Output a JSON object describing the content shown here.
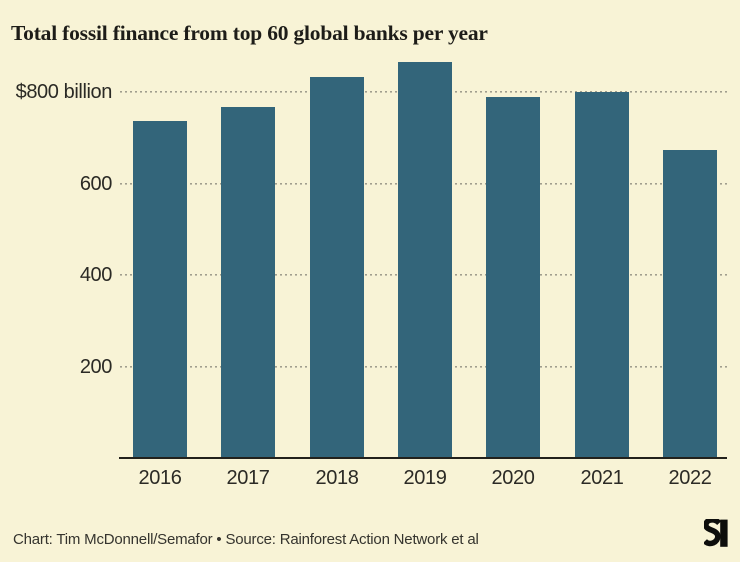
{
  "title": "Total fossil finance from top 60 global banks per year",
  "footer": {
    "credit": "Chart: Tim McDonnell/Semafor • Source: Rainforest Action Network et al",
    "logo": "semafor-logo"
  },
  "colors": {
    "background": "#f8f3d6",
    "bar": "#33657a",
    "title_text": "#1d1c18",
    "label_text": "#2b2a25",
    "footer_text": "#35342e",
    "gridline": "#a19e8e",
    "axis_line": "#22211c",
    "logo": "#0e0e0c"
  },
  "chart_data": {
    "type": "bar",
    "title": "Total fossil finance from top 60 global banks per year",
    "categories": [
      "2016",
      "2017",
      "2018",
      "2019",
      "2020",
      "2021",
      "2022"
    ],
    "values": [
      737,
      769,
      834,
      866,
      789,
      801,
      673
    ],
    "unit": "$ billion",
    "xlabel": "",
    "ylabel": "",
    "y_ticks": [
      {
        "value": 200,
        "label": "200"
      },
      {
        "value": 400,
        "label": "400"
      },
      {
        "value": 600,
        "label": "600"
      },
      {
        "value": 800,
        "label": "$800 billion"
      }
    ],
    "ylim": [
      0,
      880
    ],
    "grid": "horizontal-dotted",
    "legend": "none"
  }
}
